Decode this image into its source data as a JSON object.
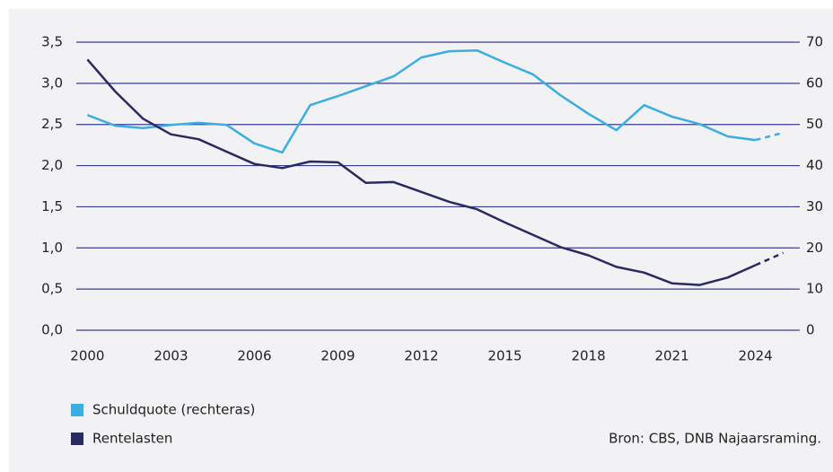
{
  "chart_data": {
    "type": "line",
    "x": [
      2000,
      2001,
      2002,
      2003,
      2004,
      2005,
      2006,
      2007,
      2008,
      2009,
      2010,
      2011,
      2012,
      2013,
      2014,
      2015,
      2016,
      2017,
      2018,
      2019,
      2020,
      2021,
      2022,
      2023,
      2024,
      2025
    ],
    "series": [
      {
        "name": "Schuldquote (rechteras)",
        "color": "#3aaee0",
        "axis": "y2",
        "values": [
          52.3,
          49.7,
          49.1,
          49.9,
          50.4,
          49.9,
          45.4,
          43.2,
          54.7,
          56.9,
          59.3,
          61.7,
          66.3,
          67.8,
          68.0,
          65.0,
          62.2,
          57.1,
          52.6,
          48.6,
          54.7,
          51.9,
          50.1,
          47.1,
          46.2,
          48.0
        ]
      },
      {
        "name": "Rentelasten",
        "color": "#2a2a62",
        "values": [
          3.29,
          2.9,
          2.57,
          2.38,
          2.32,
          2.17,
          2.02,
          1.97,
          2.05,
          2.04,
          1.79,
          1.8,
          1.68,
          1.56,
          1.47,
          1.31,
          1.16,
          1.01,
          0.91,
          0.77,
          0.7,
          0.57,
          0.55,
          0.64,
          0.79,
          0.94
        ]
      }
    ],
    "projection_from": 2024,
    "xlim": [
      1999.6,
      2025.4
    ],
    "xticks": [
      2000,
      2003,
      2006,
      2009,
      2012,
      2015,
      2018,
      2021,
      2024
    ],
    "ylim": [
      0,
      3.5
    ],
    "yticks": [
      {
        "value": 0,
        "label": "0,0"
      },
      {
        "value": 0.5,
        "label": "0,5"
      },
      {
        "value": 1,
        "label": "1,0"
      },
      {
        "value": 1.5,
        "label": "1,5"
      },
      {
        "value": 2,
        "label": "2,0"
      },
      {
        "value": 2.5,
        "label": "2,5"
      },
      {
        "value": 3,
        "label": "3,0"
      },
      {
        "value": 3.5,
        "label": "3,5"
      }
    ],
    "y2lim": [
      0,
      70
    ],
    "y2ticks": [
      0,
      10,
      20,
      30,
      40,
      50,
      60,
      70
    ],
    "grid": true,
    "grid_color": "#3a3d8f",
    "source": "Bron: CBS, DNB Najaarsraming."
  }
}
